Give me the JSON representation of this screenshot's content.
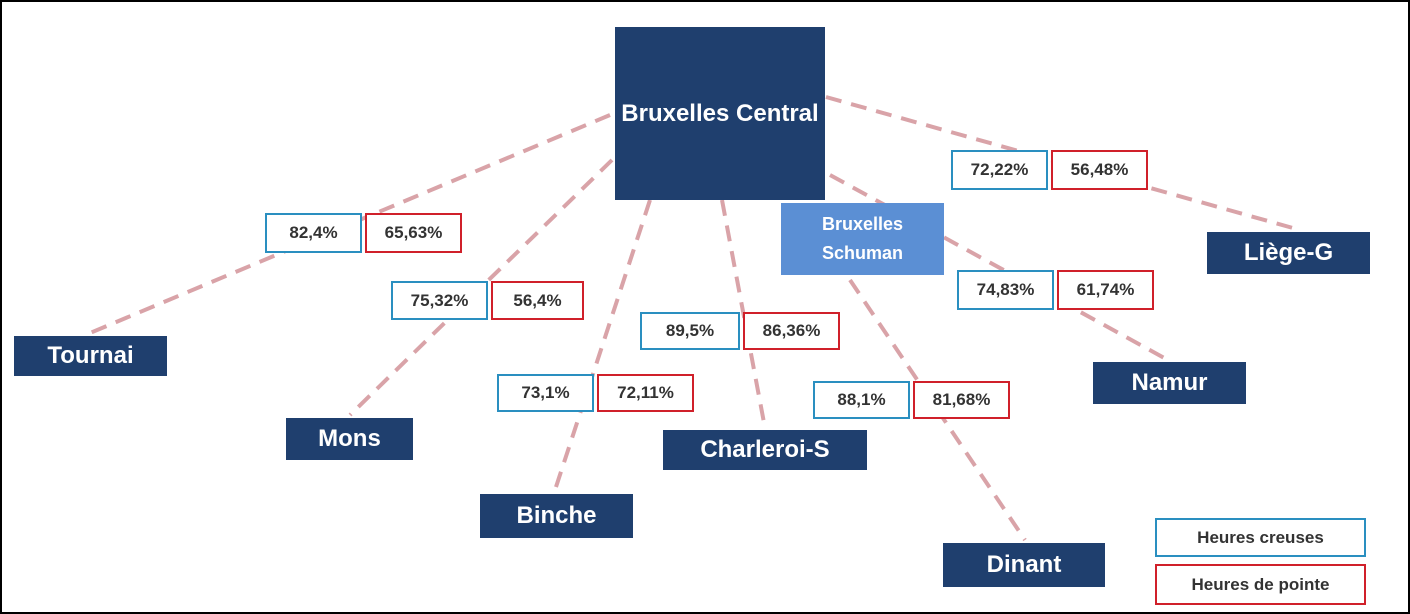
{
  "nodes": [
    {
      "label": "Bruxelles Central"
    },
    {
      "label": "Bruxelles Schuman"
    },
    {
      "label": "Tournai"
    },
    {
      "label": "Mons"
    },
    {
      "label": "Binche"
    },
    {
      "label": "Charleroi-S"
    },
    {
      "label": "Dinant"
    },
    {
      "label": "Namur"
    },
    {
      "label": "Liège-G"
    }
  ],
  "edges": [
    {
      "to": "Tournai",
      "off_peak": "82,4%",
      "peak": "65,63%"
    },
    {
      "to": "Mons",
      "off_peak": "75,32%",
      "peak": "56,4%"
    },
    {
      "to": "Binche",
      "off_peak": "73,1%",
      "peak": "72,11%"
    },
    {
      "to": "Charleroi-S",
      "off_peak": "89,5%",
      "peak": "86,36%"
    },
    {
      "to": "Dinant",
      "off_peak": "88,1%",
      "peak": "81,68%"
    },
    {
      "to": "Namur",
      "off_peak": "74,83%",
      "peak": "61,74%"
    },
    {
      "to": "Liège-G",
      "off_peak": "72,22%",
      "peak": "56,48%"
    }
  ],
  "legend": {
    "off_peak": "Heures creuses",
    "peak": "Heures de pointe"
  }
}
